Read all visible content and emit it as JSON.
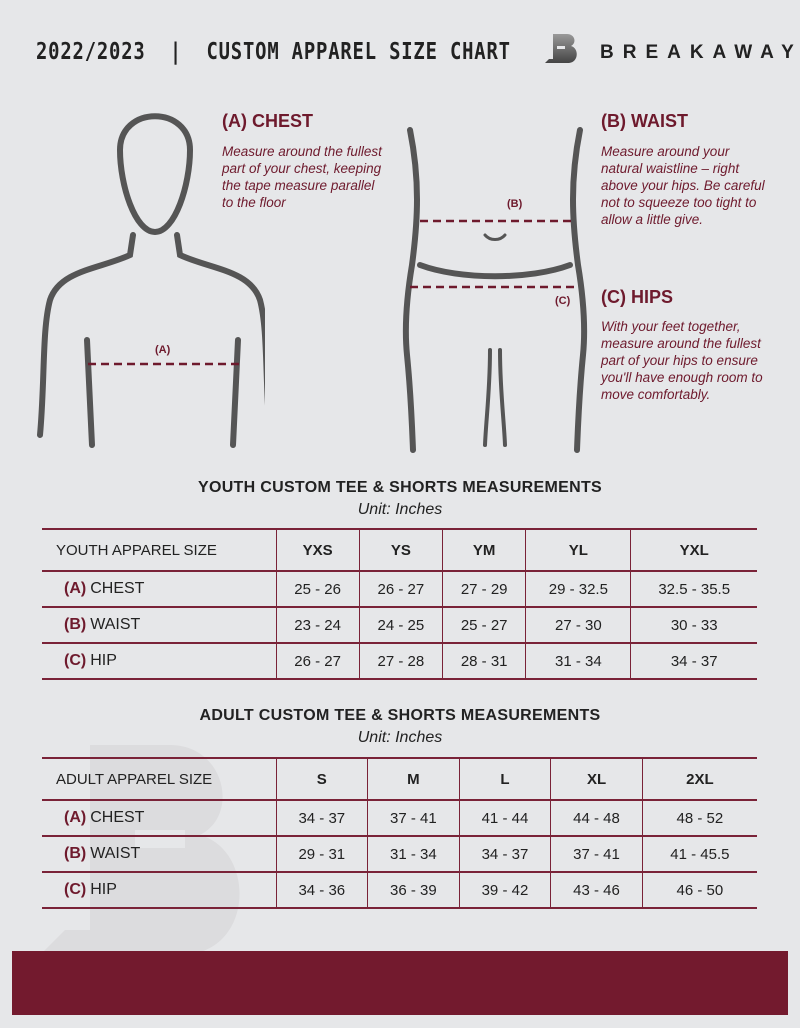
{
  "header": {
    "title": "2022/2023  |  CUSTOM APPAREL SIZE CHART",
    "brand": "BREAKAWAY",
    "logo_letter": "B"
  },
  "measures": {
    "chest": {
      "heading": "(A) CHEST",
      "text": "Measure around the fullest part of your chest, keeping the tape measure parallel to the floor",
      "marker": "(A)"
    },
    "waist": {
      "heading": "(B) WAIST",
      "text": "Measure around your natural waistline – right above your hips. Be careful not to squeeze too tight to allow a little give.",
      "marker": "(B)"
    },
    "hips": {
      "heading": "(C) HIPS",
      "text": "With your feet together, measure around the fullest part of your hips to ensure you'll have enough room to move comfortably.",
      "marker": "(C)"
    }
  },
  "youth": {
    "title": "YOUTH CUSTOM TEE & SHORTS MEASUREMENTS",
    "unit": "Unit: Inches",
    "header": [
      "YOUTH APPAREL SIZE",
      "YXS",
      "YS",
      "YM",
      "YL",
      "YXL"
    ],
    "rows": [
      {
        "code": "(A)",
        "label": "CHEST",
        "values": [
          "25 - 26",
          "26 - 27",
          "27 - 29",
          "29 - 32.5",
          "32.5 - 35.5"
        ]
      },
      {
        "code": "(B)",
        "label": "WAIST",
        "values": [
          "23 - 24",
          "24 - 25",
          "25 - 27",
          "27 - 30",
          "30 - 33"
        ]
      },
      {
        "code": "(C)",
        "label": "HIP",
        "values": [
          "26 - 27",
          "27 - 28",
          "28 - 31",
          "31 - 34",
          "34 - 37"
        ]
      }
    ]
  },
  "adult": {
    "title": "ADULT CUSTOM TEE & SHORTS MEASUREMENTS",
    "unit": "Unit: Inches",
    "header": [
      "ADULT APPAREL SIZE",
      "S",
      "M",
      "L",
      "XL",
      "2XL"
    ],
    "rows": [
      {
        "code": "(A)",
        "label": "CHEST",
        "values": [
          "34 - 37",
          "37 - 41",
          "41 - 44",
          "44 - 48",
          "48 - 52"
        ]
      },
      {
        "code": "(B)",
        "label": "WAIST",
        "values": [
          "29 - 31",
          "31 - 34",
          "34 - 37",
          "37 - 41",
          "41 - 45.5"
        ]
      },
      {
        "code": "(C)",
        "label": "HIP",
        "values": [
          "34 - 36",
          "36 - 39",
          "39 - 42",
          "43 - 46",
          "46 - 50"
        ]
      }
    ]
  },
  "colors": {
    "accent": "#6e1a2d",
    "background": "#e6e7e9"
  }
}
